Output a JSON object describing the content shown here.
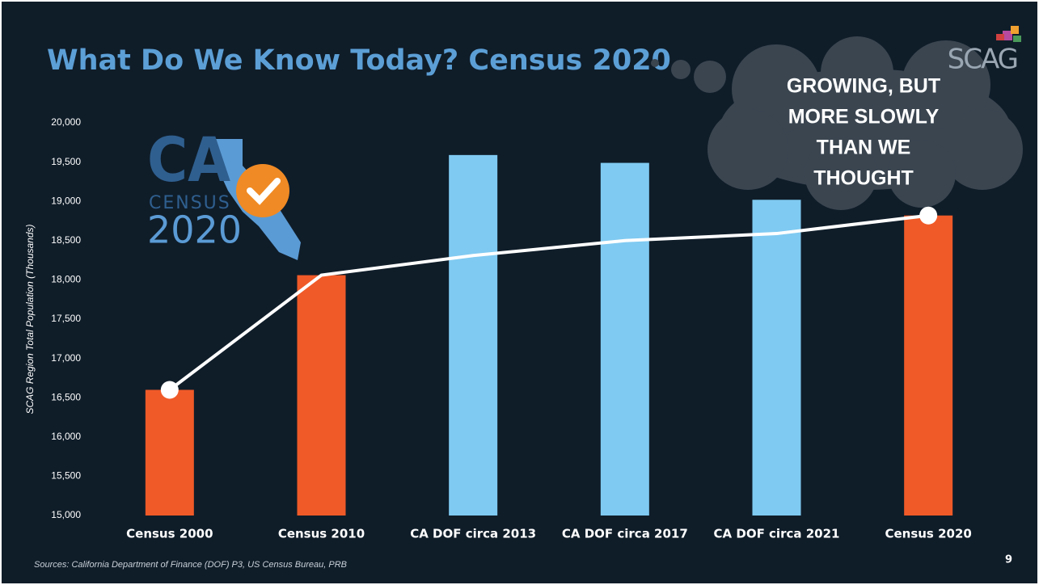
{
  "chart_data": {
    "type": "bar",
    "title": "What Do We Know Today? Census 2020",
    "y_label": "SCAG Region Total Population (Thousands)",
    "categories": [
      "Census 2000",
      "Census 2010",
      "CA DOF circa 2013",
      "CA DOF circa 2017",
      "CA DOF circa 2021",
      "Census 2020"
    ],
    "values": [
      16600,
      18060,
      19590,
      19490,
      19020,
      18820
    ],
    "colors": [
      "#f05a28",
      "#f05a28",
      "#7fcaf2",
      "#7fcaf2",
      "#7fcaf2",
      "#f05a28"
    ],
    "line": {
      "color": "#ffffff",
      "values": [
        16600,
        18060,
        18310,
        18500,
        18590,
        18820
      ]
    },
    "ylim": [
      15000,
      20000
    ],
    "yticks": [
      {
        "value": 15000,
        "label": "15,000"
      },
      {
        "value": 15500,
        "label": "15,500"
      },
      {
        "value": 16000,
        "label": "16,000"
      },
      {
        "value": 16500,
        "label": "16,500"
      },
      {
        "value": 17000,
        "label": "17,000"
      },
      {
        "value": 17500,
        "label": "17,500"
      },
      {
        "value": 18000,
        "label": "18,000"
      },
      {
        "value": 18500,
        "label": "18,500"
      },
      {
        "value": 19000,
        "label": "19,000"
      },
      {
        "value": 19500,
        "label": "19,500"
      },
      {
        "value": 20000,
        "label": "20,000"
      }
    ],
    "annotation": [
      "GROWING, BUT",
      "MORE SLOWLY",
      "THAN WE",
      "THOUGHT"
    ],
    "logo": {
      "abbr": "CA",
      "word": "CENSUS",
      "year": "2020"
    },
    "brand": "SCAG",
    "source": "Sources: California Department of Finance (DOF) P3, US Census Bureau, PRB",
    "page_number": "9"
  }
}
